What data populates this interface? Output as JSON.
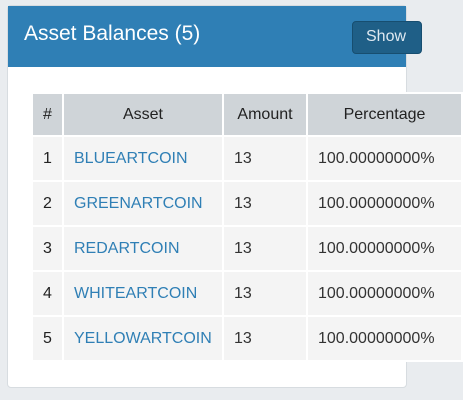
{
  "panel": {
    "title": "Asset Balances (5)",
    "show_button_label": "Show"
  },
  "table": {
    "headers": [
      "#",
      "Asset",
      "Amount",
      "Percentage"
    ],
    "rows": [
      {
        "index": "1",
        "asset": "BLUEARTCOIN",
        "amount": "13",
        "percentage": "100.00000000%"
      },
      {
        "index": "2",
        "asset": "GREENARTCOIN",
        "amount": "13",
        "percentage": "100.00000000%"
      },
      {
        "index": "3",
        "asset": "REDARTCOIN",
        "amount": "13",
        "percentage": "100.00000000%"
      },
      {
        "index": "4",
        "asset": "WHITEARTCOIN",
        "amount": "13",
        "percentage": "100.00000000%"
      },
      {
        "index": "5",
        "asset": "YELLOWARTCOIN",
        "amount": "13",
        "percentage": "100.00000000%"
      }
    ]
  },
  "colors": {
    "header_bg": "#2f7fb5",
    "button_bg": "#1f5f87",
    "link": "#2f7fb5"
  }
}
